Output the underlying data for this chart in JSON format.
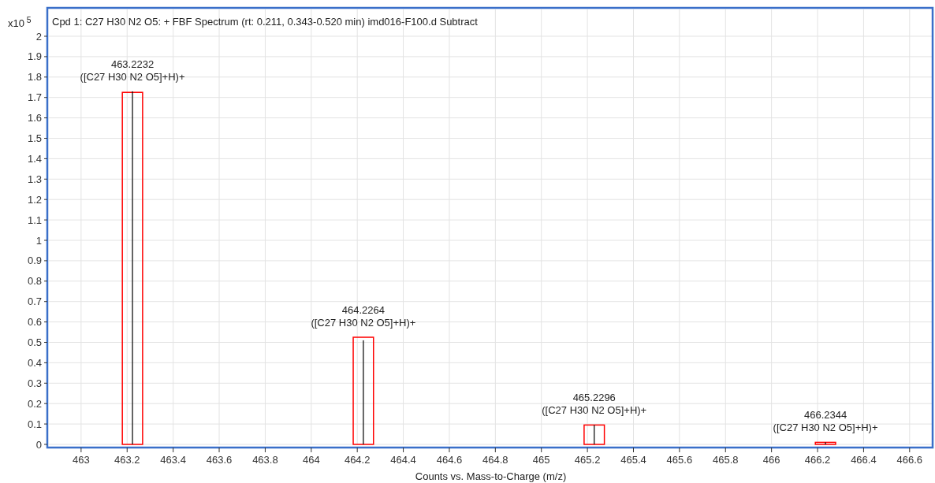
{
  "chart_data": {
    "type": "bar",
    "title": "Cpd 1: C27 H30 N2 O5: + FBF Spectrum (rt: 0.211, 0.343-0.520 min) imd016-F100.d  Subtract",
    "xlabel": "Counts vs. Mass-to-Charge (m/z)",
    "ylabel": "x10$^{5}$",
    "x": [
      463.2232,
      464.2264,
      465.2296,
      466.2344
    ],
    "series": [
      {
        "color": "#ff0000",
        "values": [
          1.725,
          0.525,
          0.095,
          0.01
        ]
      },
      {
        "color": "#000000",
        "values": [
          1.73,
          0.51,
          0.095,
          0.01
        ]
      }
    ],
    "xlim": [
      462.86,
      466.7
    ],
    "xticks": [
      {
        "value": 463,
        "label": "463"
      },
      {
        "value": 463.2,
        "label": "463.2"
      },
      {
        "value": 463.4,
        "label": "463.4"
      },
      {
        "value": 463.6,
        "label": "463.6"
      },
      {
        "value": 463.8,
        "label": "463.8"
      },
      {
        "value": 464,
        "label": "464"
      },
      {
        "value": 464.2,
        "label": "464.2"
      },
      {
        "value": 464.4,
        "label": "464.4"
      },
      {
        "value": 464.6,
        "label": "464.6"
      },
      {
        "value": 464.8,
        "label": "464.8"
      },
      {
        "value": 465,
        "label": "465"
      },
      {
        "value": 465.2,
        "label": "465.2"
      },
      {
        "value": 465.4,
        "label": "465.4"
      },
      {
        "value": 465.6,
        "label": "465.6"
      },
      {
        "value": 465.8,
        "label": "465.8"
      },
      {
        "value": 466,
        "label": "466"
      },
      {
        "value": 466.2,
        "label": "466.2"
      },
      {
        "value": 466.4,
        "label": "466.4"
      },
      {
        "value": 466.6,
        "label": "466.6"
      }
    ],
    "ylim": [
      0,
      2
    ],
    "yticks": [
      0,
      0.1,
      0.2,
      0.3,
      0.4,
      0.5,
      0.6,
      0.7,
      0.8,
      0.9,
      1,
      1.1,
      1.2,
      1.3,
      1.4,
      1.5,
      1.6,
      1.7,
      1.8,
      1.9,
      2
    ],
    "grid": true,
    "annotations": [
      {
        "text": "463.2232\n([C27 H30 N2 O5]+H)+",
        "x": 463.2232,
        "y": 1.73
      },
      {
        "text": "464.2264\n([C27 H30 N2 O5]+H)+",
        "x": 464.2264,
        "y": 0.525
      },
      {
        "text": "465.2296\n([C27 H30 N2 O5]+H)+",
        "x": 465.2296,
        "y": 0.095
      },
      {
        "text": "466.2344\n([C27 H30 N2 O5]+H)+",
        "x": 466.2344,
        "y": 0.01
      }
    ]
  }
}
